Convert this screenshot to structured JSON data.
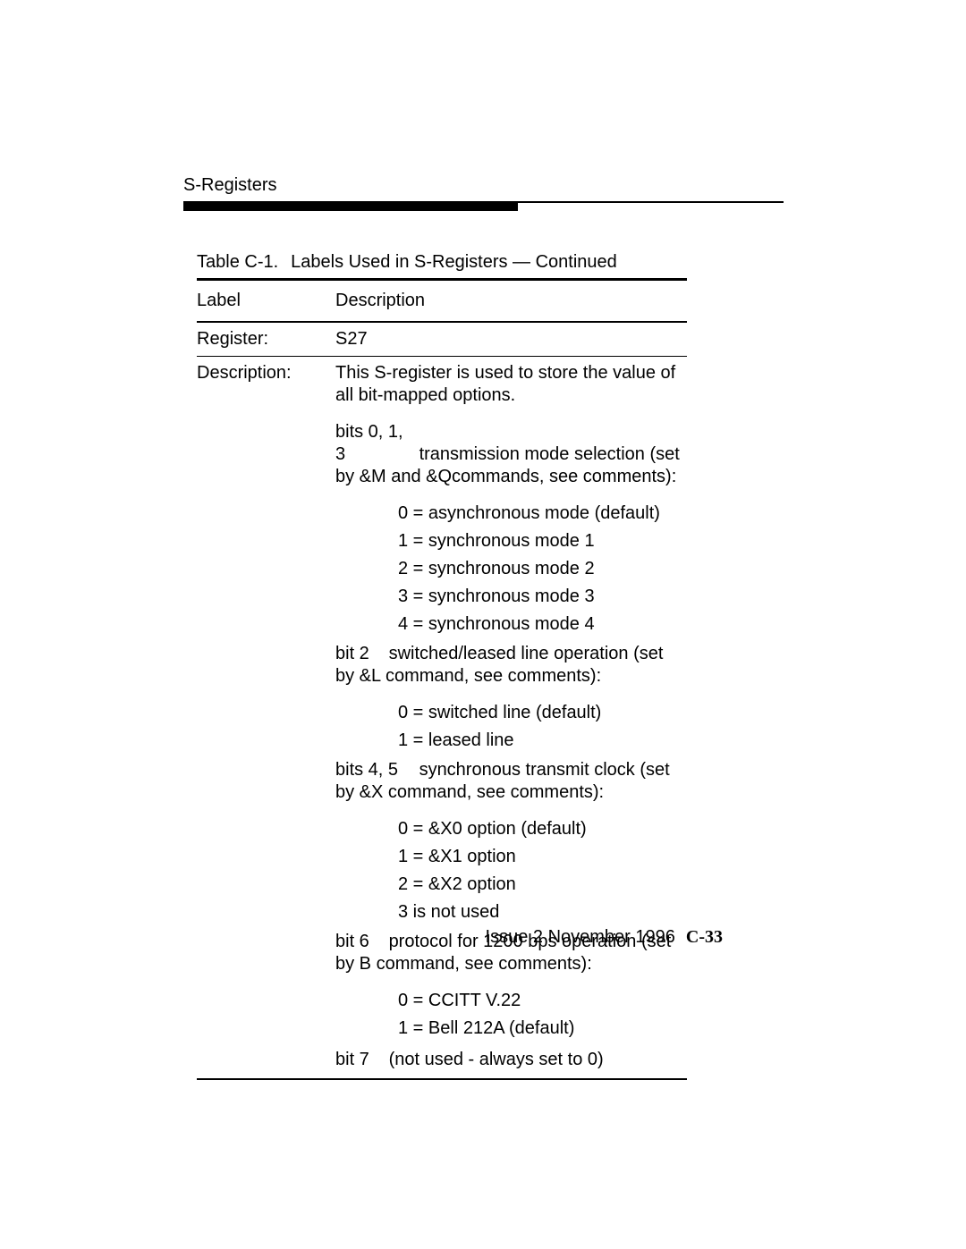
{
  "section_title": "S-Registers",
  "caption_num": "Table C-1.",
  "caption_text": "Labels Used in S-Registers — Continued",
  "header_label": "Label",
  "header_desc": "Description",
  "row_register_label": "Register:",
  "row_register_value": "S27",
  "row_description_label": "Description:",
  "desc_intro": "This S-register is used to store the value of all bit-mapped options.",
  "bits013_prefix": "bits 0, 1, 3",
  "bits013_text": "transmission mode selection (set by &M and &Qcommands, see comments):",
  "bits013_opts": {
    "0": "0 = asynchronous mode (default)",
    "1": "1 = synchronous mode 1",
    "2": "2 = synchronous mode 2",
    "3": "3 = synchronous mode 3",
    "4": "4 = synchronous mode 4"
  },
  "bit2_prefix": "bit 2",
  "bit2_text": "switched/leased line operation (set by &L command, see comments):",
  "bit2_opts": {
    "0": "0 = switched line (default)",
    "1": "1 = leased line"
  },
  "bits45_prefix": "bits 4, 5",
  "bits45_text": "synchronous transmit clock (set by &X command, see comments):",
  "bits45_opts": {
    "0": "0 = &X0 option (default)",
    "1": "1 = &X1 option",
    "2": "2 = &X2 option",
    "3": "3 is not used"
  },
  "bit6_prefix": "bit 6",
  "bit6_text": "protocol for 1200 bps operation (set by B command, see comments):",
  "bit6_opts": {
    "0": "0 = CCITT V.22",
    "1": "1 = Bell 212A (default)"
  },
  "bit7_prefix": "bit 7",
  "bit7_text": "(not used - always set to 0)",
  "footer_issue": "Issue 2   November 1996",
  "footer_page": "C-33"
}
